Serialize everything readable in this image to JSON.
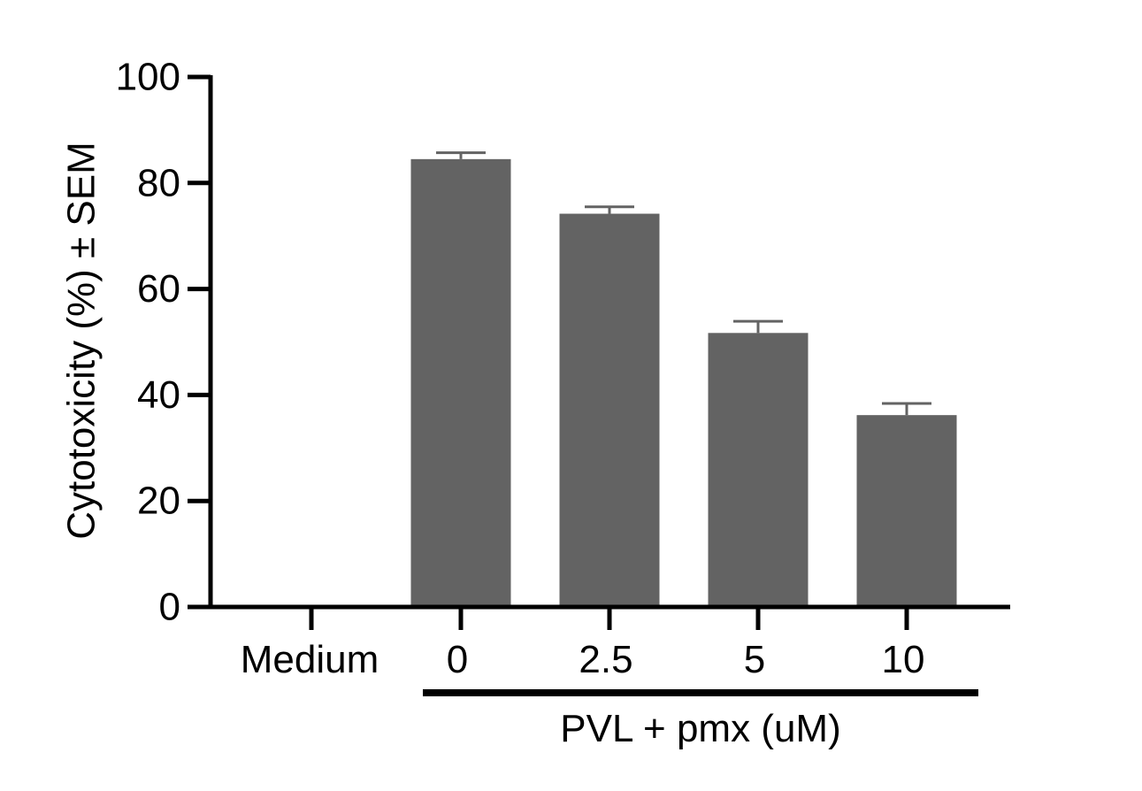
{
  "chart_data": {
    "type": "bar",
    "categories": [
      "Medium",
      "0",
      "2.5",
      "5",
      "10"
    ],
    "values": [
      0,
      84.5,
      74.2,
      51.7,
      36.2
    ],
    "errors": [
      0,
      1.2,
      1.3,
      2.2,
      2.2
    ],
    "ylabel": "Cytotoxicity (%) ± SEM",
    "ylim": [
      0,
      100
    ],
    "yticks": [
      0,
      20,
      40,
      60,
      80,
      100
    ],
    "group_label": "PVL + pmx (uM)",
    "group_categories": [
      "0",
      "2.5",
      "5",
      "10"
    ],
    "bar_color": "#636363",
    "grid": false,
    "legend": "none"
  }
}
